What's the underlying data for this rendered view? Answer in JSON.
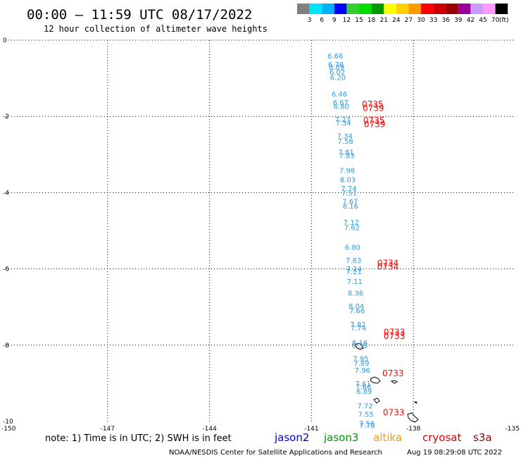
{
  "header": {
    "title": "00:00 – 11:59 UTC 08/17/2022",
    "subtitle": "12 hour collection of altimeter wave heights"
  },
  "colorbar": {
    "labels": [
      "3",
      "6",
      "9",
      "12",
      "15",
      "18",
      "21",
      "24",
      "27",
      "30",
      "33",
      "36",
      "39",
      "42",
      "45",
      "70"
    ],
    "unit": "(ft)",
    "colors": [
      "#808080",
      "#00e5ff",
      "#00b0ff",
      "#0000ff",
      "#33cc33",
      "#00dd00",
      "#009900",
      "#ffff00",
      "#ffd000",
      "#ff9900",
      "#ff0000",
      "#cc0000",
      "#990000",
      "#990099",
      "#cc99ff",
      "#ff99ff",
      "#000000"
    ]
  },
  "footer": {
    "note": "note: 1) Time is in UTC; 2) SWH is in feet",
    "credit": "NOAA/NESDIS Center for Satellite Applications and Research",
    "timestamp": "Aug 19 08:29:08 UTC 2022",
    "satellites": [
      {
        "name": "jason2",
        "color": "#0000cc"
      },
      {
        "name": "jason3",
        "color": "#009900"
      },
      {
        "name": "altika",
        "color": "#ff9900"
      },
      {
        "name": "cryosat",
        "color": "#dd0000"
      },
      {
        "name": "s3a",
        "color": "#990000"
      }
    ]
  },
  "chart_data": {
    "type": "scatter",
    "xlim": [
      -150,
      -135
    ],
    "ylim": [
      -10,
      0
    ],
    "x_ticks": [
      -150,
      -147,
      -144,
      -141,
      -138,
      -135
    ],
    "x_tick_labels": [
      "-150",
      "-147",
      "-144",
      "-141",
      "-138",
      "-135"
    ],
    "y_ticks": [
      0,
      -2,
      -4,
      -6,
      -8,
      -10
    ],
    "y_tick_labels": [
      "0",
      "-2",
      "-4",
      "-6",
      "-8",
      "-10"
    ],
    "grid": true,
    "series": [
      {
        "color": "#3399dd",
        "points": [
          {
            "x": -140.3,
            "y": -0.48,
            "label": "6.66"
          },
          {
            "x": -140.28,
            "y": -0.7,
            "label": "6.76"
          },
          {
            "x": -140.26,
            "y": -0.78,
            "label": "6.89"
          },
          {
            "x": -140.24,
            "y": -0.91,
            "label": "6.02"
          },
          {
            "x": -140.22,
            "y": -1.04,
            "label": "6.20"
          },
          {
            "x": -140.18,
            "y": -1.48,
            "label": "6.46"
          },
          {
            "x": -140.14,
            "y": -1.7,
            "label": "6.67"
          },
          {
            "x": -140.12,
            "y": -1.8,
            "label": "6.80"
          },
          {
            "x": -140.08,
            "y": -2.14,
            "label": "7.27"
          },
          {
            "x": -140.06,
            "y": -2.24,
            "label": "7.34"
          },
          {
            "x": -140.02,
            "y": -2.58,
            "label": "7.34"
          },
          {
            "x": -140.0,
            "y": -2.72,
            "label": "7.58"
          },
          {
            "x": -139.98,
            "y": -3.0,
            "label": "7.81"
          },
          {
            "x": -139.96,
            "y": -3.1,
            "label": "7.83"
          },
          {
            "x": -139.95,
            "y": -3.48,
            "label": "7.98"
          },
          {
            "x": -139.93,
            "y": -3.72,
            "label": "8.03"
          },
          {
            "x": -139.9,
            "y": -3.96,
            "label": "7.74"
          },
          {
            "x": -139.89,
            "y": -4.08,
            "label": "7.51"
          },
          {
            "x": -139.86,
            "y": -4.3,
            "label": "7.67"
          },
          {
            "x": -139.85,
            "y": -4.42,
            "label": "8.16"
          },
          {
            "x": -139.83,
            "y": -4.84,
            "label": "7.12"
          },
          {
            "x": -139.81,
            "y": -4.98,
            "label": "7.62"
          },
          {
            "x": -139.79,
            "y": -5.5,
            "label": "6.80"
          },
          {
            "x": -139.76,
            "y": -5.84,
            "label": "7.63"
          },
          {
            "x": -139.75,
            "y": -6.06,
            "label": "7.24"
          },
          {
            "x": -139.75,
            "y": -6.14,
            "label": "7.21"
          },
          {
            "x": -139.73,
            "y": -6.4,
            "label": "7.11"
          },
          {
            "x": -139.7,
            "y": -6.7,
            "label": "8.36"
          },
          {
            "x": -139.68,
            "y": -7.04,
            "label": "8.04"
          },
          {
            "x": -139.66,
            "y": -7.16,
            "label": "7.66"
          },
          {
            "x": -139.63,
            "y": -7.52,
            "label": "7.82"
          },
          {
            "x": -139.62,
            "y": -7.62,
            "label": "7.74"
          },
          {
            "x": -139.58,
            "y": -8.0,
            "label": "8.16"
          },
          {
            "x": -139.58,
            "y": -8.08,
            "label": "8.33"
          },
          {
            "x": -139.55,
            "y": -8.42,
            "label": "7.95"
          },
          {
            "x": -139.53,
            "y": -8.54,
            "label": "7.89"
          },
          {
            "x": -139.5,
            "y": -8.72,
            "label": "7.96"
          },
          {
            "x": -139.48,
            "y": -9.08,
            "label": "7.61"
          },
          {
            "x": -139.47,
            "y": -9.16,
            "label": "7.66"
          },
          {
            "x": -139.45,
            "y": -9.28,
            "label": "6.89"
          },
          {
            "x": -139.42,
            "y": -9.66,
            "label": "7.72"
          },
          {
            "x": -139.4,
            "y": -9.88,
            "label": "7.55"
          },
          {
            "x": -139.37,
            "y": -10.12,
            "label": "7.56"
          },
          {
            "x": -139.36,
            "y": -10.18,
            "label": "7.78"
          }
        ]
      },
      {
        "color": "#ff0000",
        "points": [
          {
            "x": -139.2,
            "y": -1.76,
            "label": "0735"
          },
          {
            "x": -139.18,
            "y": -1.86,
            "label": "0739"
          },
          {
            "x": -139.16,
            "y": -2.18,
            "label": "0735"
          },
          {
            "x": -139.14,
            "y": -2.28,
            "label": "0739"
          },
          {
            "x": -138.75,
            "y": -5.92,
            "label": "0734"
          },
          {
            "x": -138.75,
            "y": -6.02,
            "label": "0734"
          },
          {
            "x": -138.56,
            "y": -7.74,
            "label": "0733"
          },
          {
            "x": -138.56,
            "y": -7.84,
            "label": "0733"
          },
          {
            "x": -138.6,
            "y": -8.82,
            "label": "0733"
          },
          {
            "x": -138.58,
            "y": -9.84,
            "label": "0733"
          }
        ]
      }
    ]
  }
}
